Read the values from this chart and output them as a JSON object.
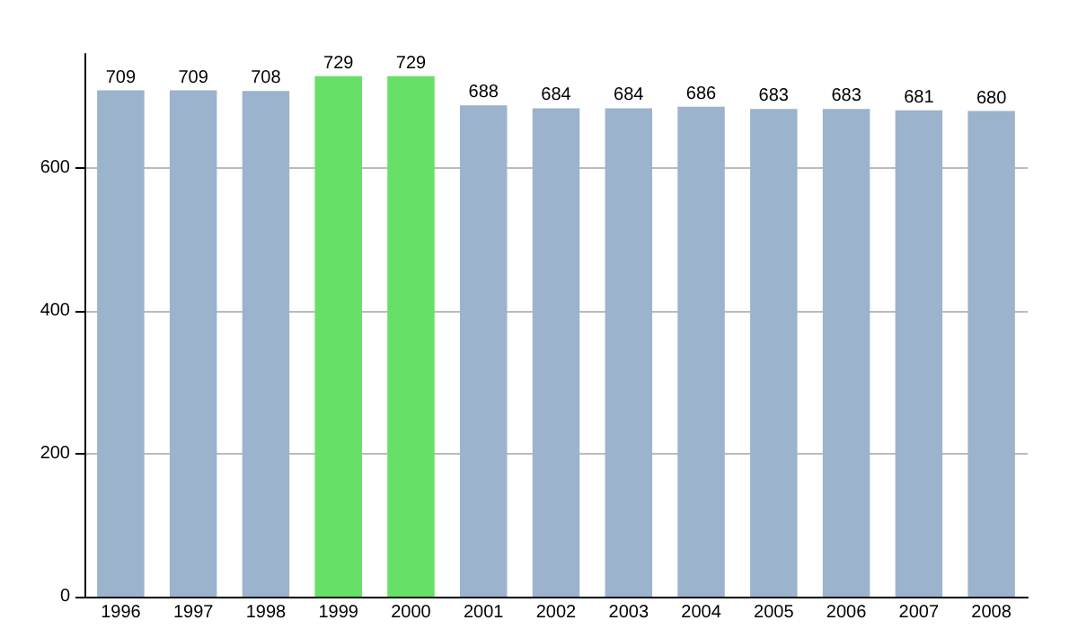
{
  "chart_data": {
    "type": "bar",
    "categories": [
      "1996",
      "1997",
      "1998",
      "1999",
      "2000",
      "2001",
      "2002",
      "2003",
      "2004",
      "2005",
      "2006",
      "2007",
      "2008"
    ],
    "values": [
      709,
      709,
      708,
      729,
      729,
      688,
      684,
      684,
      686,
      683,
      683,
      681,
      680
    ],
    "colors": [
      "#9bb3cc",
      "#9bb3cc",
      "#9bb3cc",
      "#66e066",
      "#66e066",
      "#9bb3cc",
      "#9bb3cc",
      "#9bb3cc",
      "#9bb3cc",
      "#9bb3cc",
      "#9bb3cc",
      "#9bb3cc",
      "#9bb3cc"
    ],
    "ylim": [
      0,
      760
    ],
    "yticks": [
      0,
      200,
      400,
      600
    ],
    "grid": "y",
    "data_labels": true
  }
}
